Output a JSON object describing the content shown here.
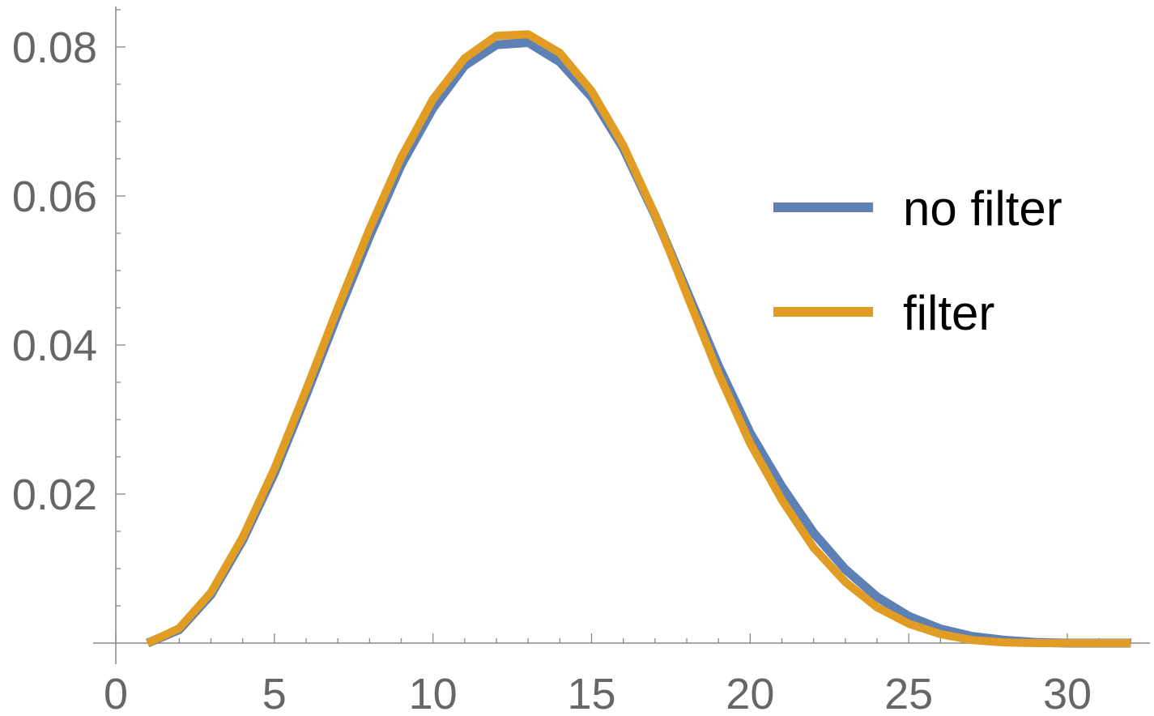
{
  "chart_data": {
    "type": "line",
    "title": "",
    "xlabel": "",
    "ylabel": "",
    "xlim": [
      0,
      32
    ],
    "ylim": [
      0,
      0.085
    ],
    "x_ticks": [
      0,
      5,
      10,
      15,
      20,
      25,
      30
    ],
    "x_tick_labels": [
      "0",
      "5",
      "10",
      "15",
      "20",
      "25",
      "30"
    ],
    "y_ticks": [
      0.02,
      0.04,
      0.06,
      0.08
    ],
    "y_tick_labels": [
      "0.02",
      "0.04",
      "0.06",
      "0.08"
    ],
    "grid": false,
    "legend_position": "right",
    "x": [
      1,
      2,
      3,
      4,
      5,
      6,
      7,
      8,
      9,
      10,
      11,
      12,
      13,
      14,
      15,
      16,
      17,
      18,
      19,
      20,
      21,
      22,
      23,
      24,
      25,
      26,
      27,
      28,
      29,
      30,
      31,
      32
    ],
    "series": [
      {
        "name": "no filter",
        "color": "#5E81B5",
        "values": [
          0.0,
          0.0018,
          0.0065,
          0.0138,
          0.0228,
          0.0333,
          0.0442,
          0.0546,
          0.0642,
          0.0718,
          0.0775,
          0.0803,
          0.0806,
          0.078,
          0.0733,
          0.0664,
          0.0574,
          0.0473,
          0.0372,
          0.0282,
          0.021,
          0.0148,
          0.0099,
          0.0062,
          0.0036,
          0.0019,
          0.0009,
          0.0004,
          0.0001,
          0.0,
          0.0,
          0.0
        ]
      },
      {
        "name": "filter",
        "color": "#E19C24",
        "values": [
          0.0,
          0.002,
          0.0068,
          0.0142,
          0.0234,
          0.034,
          0.045,
          0.0556,
          0.0652,
          0.073,
          0.0785,
          0.0815,
          0.0817,
          0.0792,
          0.0741,
          0.0668,
          0.0575,
          0.0468,
          0.0362,
          0.0268,
          0.0192,
          0.0128,
          0.0082,
          0.0048,
          0.0026,
          0.0012,
          0.0004,
          0.0001,
          0.0,
          0.0,
          0.0,
          0.0
        ]
      }
    ]
  }
}
